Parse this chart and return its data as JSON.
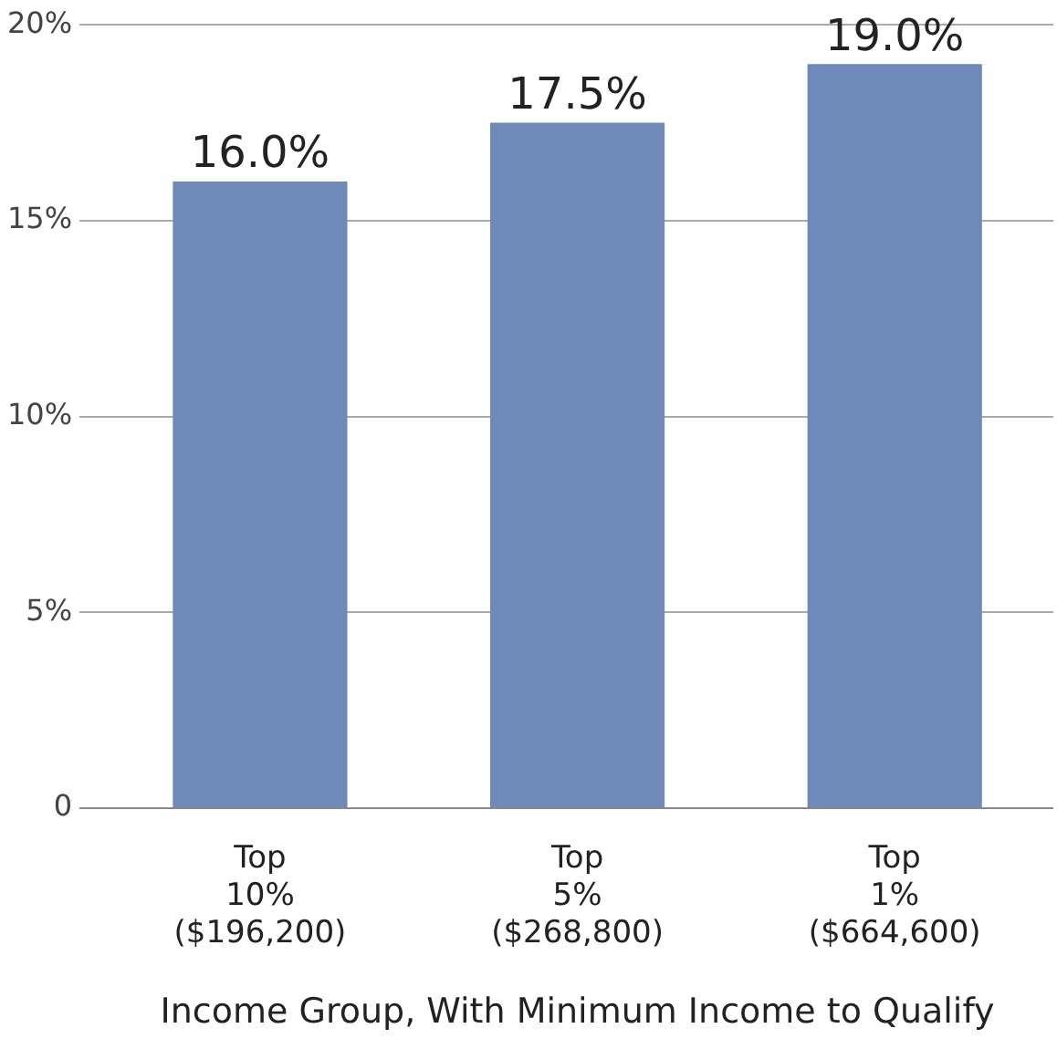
{
  "chart_data": {
    "type": "bar",
    "xlabel": "Income Group, With Minimum Income to Qualify",
    "categories": [
      "Top\n10%\n($196,200)",
      "Top\n5%\n($268,800)",
      "Top\n1%\n($664,600)"
    ],
    "values": [
      16.0,
      17.5,
      19.0
    ],
    "color": "#6f8ab9",
    "value_labels": [
      "16.0%",
      "17.5%",
      "19.0%"
    ],
    "ylim": [
      0,
      20
    ],
    "yticks": [
      0,
      {
        "value": 5,
        "label": "5%"
      },
      {
        "value": 10,
        "label": "10%"
      },
      {
        "value": 15,
        "label": "15%"
      },
      {
        "value": 20,
        "label": "20%"
      }
    ],
    "grid": "y",
    "legend": false
  }
}
